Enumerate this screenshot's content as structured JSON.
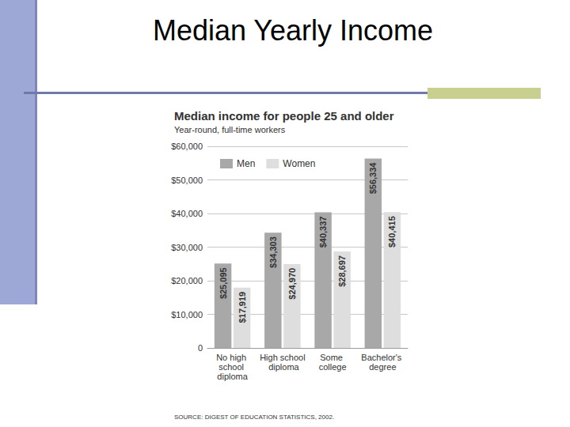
{
  "header": {
    "title": "Median Yearly Income"
  },
  "chart_data": {
    "type": "bar",
    "title": "Median income for people 25 and older",
    "subtitle": "Year-round, full-time workers",
    "source": "SOURCE: DIGEST OF EDUCATION STATISTICS, 2002.",
    "categories": [
      "No high school diploma",
      "High school diploma",
      "Some college",
      "Bachelor's degree"
    ],
    "series": [
      {
        "name": "Men",
        "color": "#a8a8a8",
        "values": [
          25095,
          34303,
          40337,
          56334
        ],
        "value_labels": [
          "$25,095",
          "$34,303",
          "$40,337",
          "$56,334"
        ]
      },
      {
        "name": "Women",
        "color": "#dedede",
        "values": [
          17919,
          24970,
          28697,
          40415
        ],
        "value_labels": [
          "$17,919",
          "$24,970",
          "$28,697",
          "$40,415"
        ]
      }
    ],
    "ylim": [
      0,
      60000
    ],
    "yticks": [
      0,
      {
        "value": 10000,
        "label": "$10,000"
      },
      {
        "value": 20000,
        "label": "$20,000"
      },
      {
        "value": 30000,
        "label": "$30,000"
      },
      {
        "value": 40000,
        "label": "$40,000"
      },
      {
        "value": 50000,
        "label": "$50,000"
      },
      {
        "value": 60000,
        "label": "$60,000"
      }
    ],
    "grid": true,
    "legend": "upper left",
    "data_labels": true
  }
}
